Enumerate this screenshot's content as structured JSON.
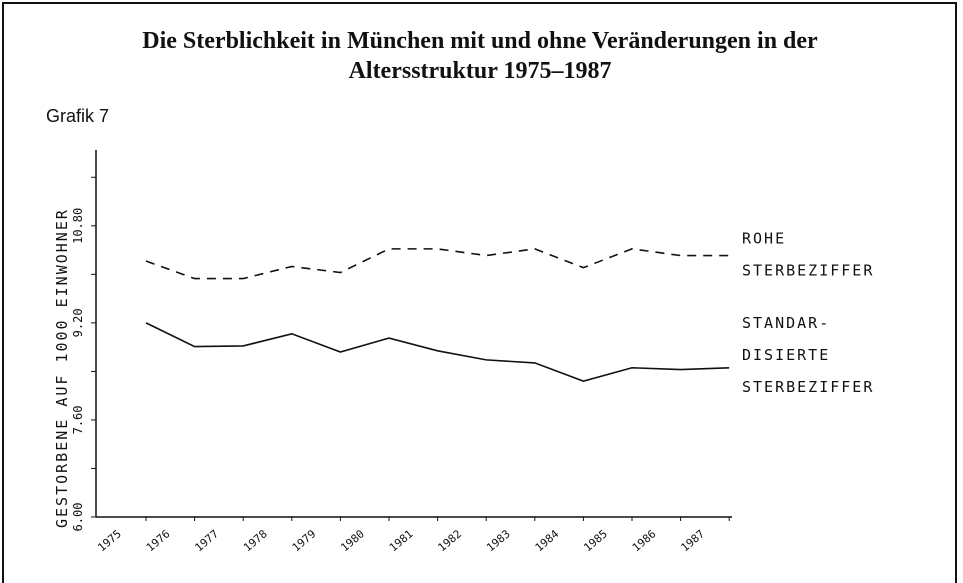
{
  "chart_data": {
    "type": "line",
    "title": "Die Sterblichkeit in München mit und ohne Veränderungen in der Altersstruktur 1975–1987",
    "subtitle": "Grafik 7",
    "y_label": "GESTORBENE AUF 1000 EINWOHNER",
    "categories": [
      "1975",
      "1976",
      "1977",
      "1978",
      "1979",
      "1980",
      "1981",
      "1982",
      "1983",
      "1984",
      "1985",
      "1986",
      "1987"
    ],
    "series": [
      {
        "label_lines": [
          "ROHE",
          "STERBEZIFFER"
        ],
        "color": "#111",
        "dash": true,
        "values": [
          10.22,
          9.93,
          9.93,
          10.13,
          10.03,
          10.42,
          10.42,
          10.31,
          10.42,
          10.11,
          10.42,
          10.31,
          10.31
        ]
      },
      {
        "label_lines": [
          "STANDAR-",
          "DISIERTE",
          "STERBEZIFFER"
        ],
        "color": "#111",
        "dash": false,
        "values": [
          9.2,
          8.81,
          8.82,
          9.02,
          8.72,
          8.95,
          8.74,
          8.59,
          8.54,
          8.24,
          8.46,
          8.43,
          8.46
        ]
      }
    ],
    "ylim": [
      6.0,
      12.05
    ],
    "yticks": [
      {
        "value": 6.0,
        "label": "6.00"
      },
      {
        "value": 7.6,
        "label": "7.60"
      },
      {
        "value": 9.2,
        "label": "9.20"
      },
      {
        "value": 10.8,
        "label": "10.80"
      }
    ],
    "yticks_minor": [
      6.8,
      8.4,
      10.0,
      11.6
    ],
    "grid": false
  }
}
